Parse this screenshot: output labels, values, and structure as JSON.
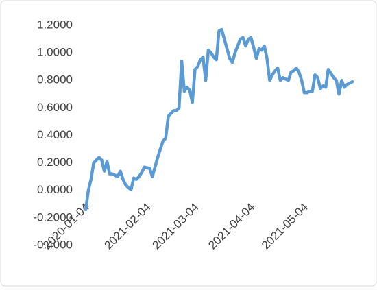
{
  "chart_data": {
    "type": "line",
    "categories": [
      "2020-01-04",
      null,
      null,
      null,
      null,
      null,
      null,
      null,
      null,
      null,
      null,
      null,
      null,
      null,
      null,
      null,
      null,
      null,
      null,
      null,
      null,
      null,
      null,
      "2021-02-04",
      null,
      null,
      null,
      null,
      null,
      null,
      null,
      null,
      null,
      null,
      null,
      null,
      null,
      null,
      null,
      null,
      null,
      "2021-03-04",
      null,
      null,
      null,
      null,
      null,
      null,
      null,
      null,
      null,
      null,
      null,
      null,
      null,
      null,
      null,
      null,
      null,
      null,
      null,
      null,
      "2021-04-04",
      null,
      null,
      null,
      null,
      null,
      null,
      null,
      null,
      null,
      null,
      null,
      null,
      null,
      null,
      null,
      null,
      null,
      null,
      null,
      "2021-05-04",
      null,
      null,
      null,
      null,
      null,
      null,
      null,
      null,
      null,
      null,
      null,
      null,
      null,
      null,
      null,
      null,
      null,
      null
    ],
    "series": [
      {
        "color": "#5b9bd5",
        "values": [
          -0.14,
          0.0,
          0.08,
          0.2,
          0.22,
          0.24,
          0.22,
          0.14,
          0.21,
          0.12,
          0.12,
          0.11,
          0.1,
          0.14,
          0.08,
          0.04,
          0.02,
          0.005,
          0.09,
          0.08,
          0.1,
          0.13,
          0.17,
          0.165,
          0.16,
          0.1,
          0.17,
          0.24,
          0.3,
          0.36,
          0.38,
          0.54,
          0.56,
          0.58,
          0.58,
          0.6,
          0.94,
          0.72,
          0.75,
          0.73,
          0.64,
          0.88,
          0.9,
          0.95,
          0.97,
          0.8,
          1.02,
          1.0,
          0.97,
          0.95,
          1.16,
          1.17,
          1.1,
          1.03,
          0.96,
          0.93,
          1.0,
          1.05,
          1.1,
          1.11,
          1.05,
          1.1,
          1.11,
          1.04,
          0.96,
          1.03,
          1.02,
          1.05,
          0.96,
          0.8,
          0.84,
          0.87,
          0.89,
          0.8,
          0.82,
          0.81,
          0.8,
          0.86,
          0.87,
          0.89,
          0.86,
          0.8,
          0.71,
          0.71,
          0.72,
          0.72,
          0.84,
          0.82,
          0.74,
          0.76,
          0.75,
          0.88,
          0.85,
          0.82,
          0.8,
          0.7,
          0.8,
          0.75,
          0.77,
          0.78,
          0.79
        ]
      }
    ],
    "ylim": [
      -0.4,
      1.2
    ],
    "yticks": [
      {
        "value": -0.4,
        "label": "-0.4000"
      },
      {
        "value": -0.2,
        "label": "-0.2000"
      },
      {
        "value": 0,
        "label": "0.0000"
      },
      {
        "value": 0.2,
        "label": "0.2000"
      },
      {
        "value": 0.4,
        "label": "0.4000"
      },
      {
        "value": 0.6,
        "label": "0.6000"
      },
      {
        "value": 0.8,
        "label": "0.8000"
      },
      {
        "value": 1.0,
        "label": "1.0000"
      },
      {
        "value": 1.2,
        "label": "1.2000"
      }
    ],
    "grid": false
  }
}
